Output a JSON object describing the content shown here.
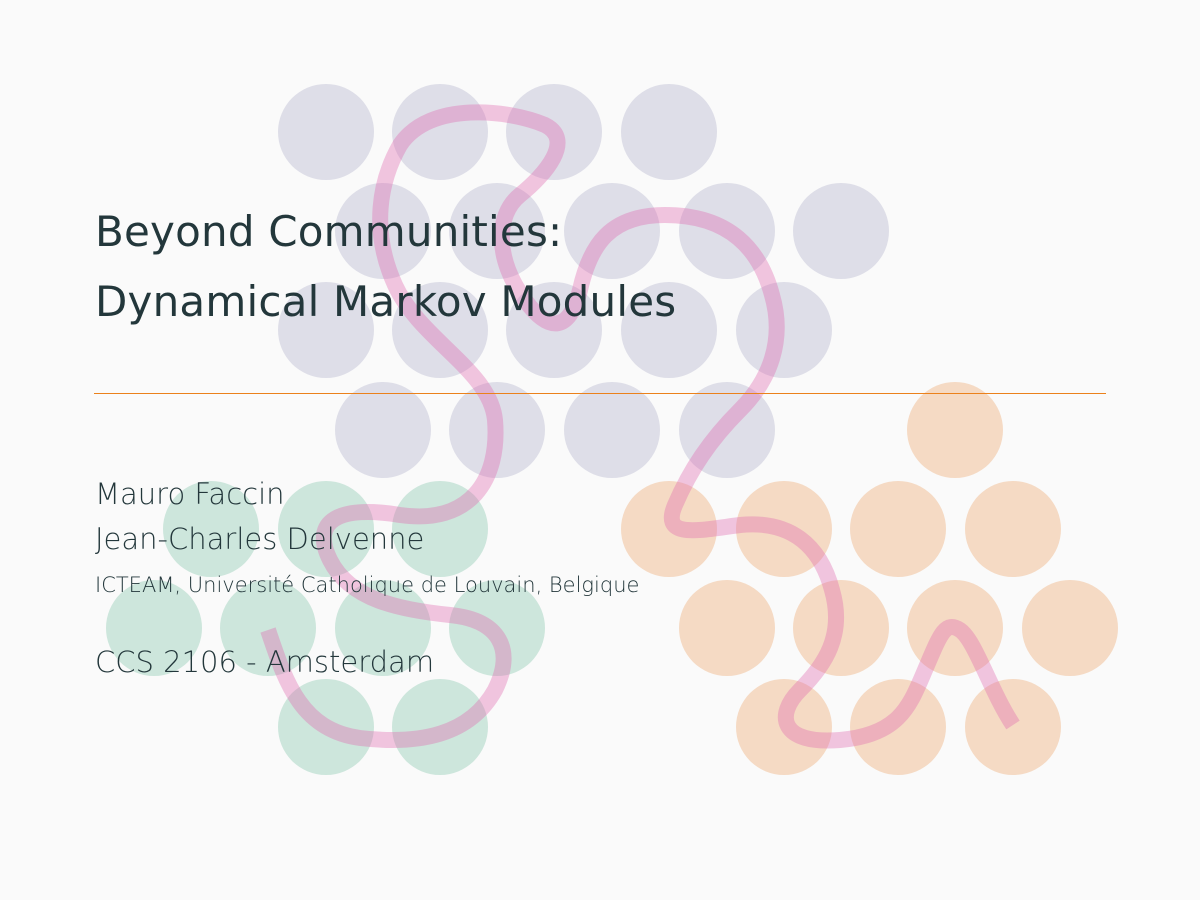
{
  "slide": {
    "title_line_1": "Beyond Communities:",
    "title_line_2": "Dynamical Markov Modules",
    "authors": [
      "Mauro Faccin",
      "Jean-Charles Delvenne"
    ],
    "institute": "ICTEAM, Université Catholique de Louvain, Belgique",
    "event": "CCS 2106 - Amsterdam"
  },
  "colors": {
    "background": "#fafafa",
    "text": "#23373b",
    "rule": "#eb811b",
    "module_purple": "#dedee8",
    "module_green": "#cde6dc",
    "module_orange": "#f5dac4",
    "walk_path": "#e06cb0"
  },
  "decoration": {
    "description_icon": "network-modules-with-random-walk-icon"
  }
}
